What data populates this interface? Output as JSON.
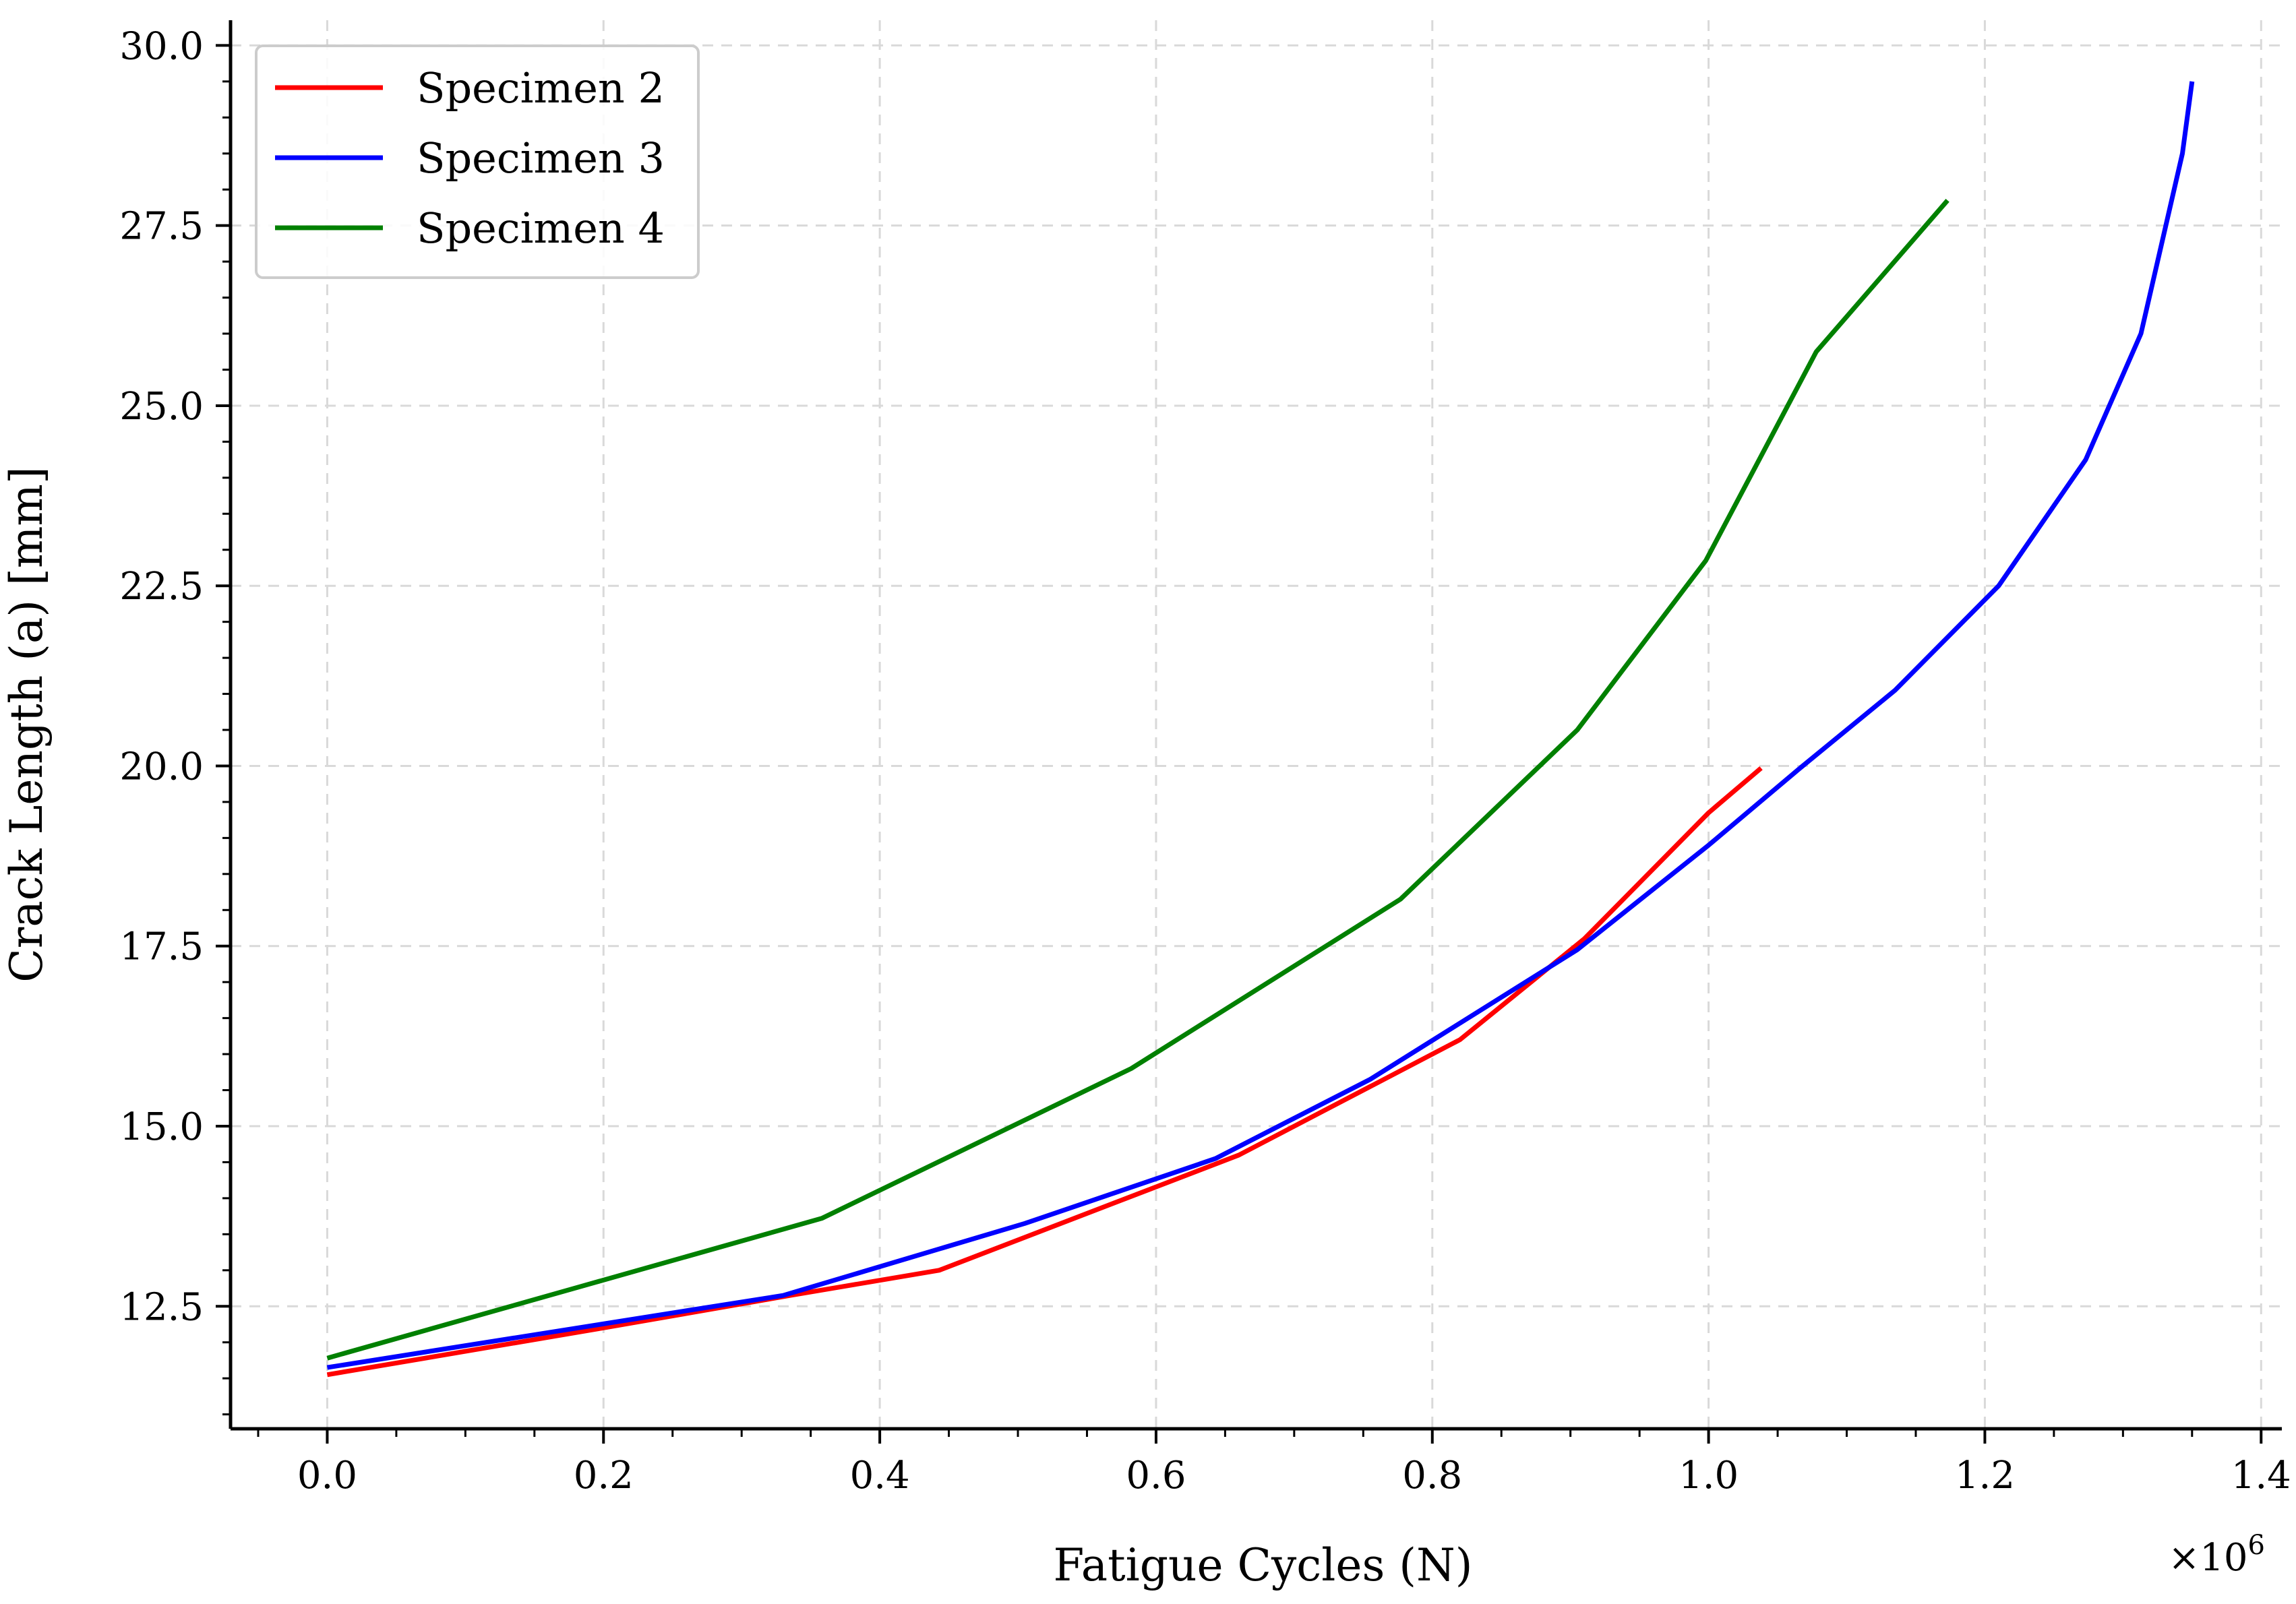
{
  "chart_data": {
    "type": "line",
    "xlabel": "Fatigue Cycles (N)",
    "ylabel": "Crack Length (a) [mm]",
    "x_offset_label": "×10",
    "x_offset_exponent": "6",
    "xlim": [
      -0.07,
      1.415
    ],
    "ylim": [
      10.8,
      30.35
    ],
    "x_ticks": [
      0.0,
      0.2,
      0.4,
      0.6,
      0.8,
      1.0,
      1.2,
      1.4
    ],
    "x_tick_labels": [
      "0.0",
      "0.2",
      "0.4",
      "0.6",
      "0.8",
      "1.0",
      "1.2",
      "1.4"
    ],
    "y_ticks": [
      12.5,
      15.0,
      17.5,
      20.0,
      22.5,
      25.0,
      27.5,
      30.0
    ],
    "y_tick_labels": [
      "12.5",
      "15.0",
      "17.5",
      "20.0",
      "22.5",
      "25.0",
      "27.5",
      "30.0"
    ],
    "grid": true,
    "legend_position": "top-left",
    "series": [
      {
        "name": "Specimen 2",
        "color": "#ff0000",
        "x": [
          0.0,
          0.2,
          0.335,
          0.443,
          0.66,
          0.82,
          0.91,
          1.0,
          1.038
        ],
        "y": [
          11.55,
          12.2,
          12.65,
          13.0,
          14.6,
          16.2,
          17.6,
          19.35,
          19.97
        ]
      },
      {
        "name": "Specimen 3",
        "color": "#0000ff",
        "x": [
          0.0,
          0.33,
          0.505,
          0.643,
          0.755,
          0.905,
          1.0,
          1.065,
          1.135,
          1.21,
          1.273,
          1.313,
          1.343,
          1.35
        ],
        "y": [
          11.65,
          12.65,
          13.65,
          14.55,
          15.65,
          17.45,
          18.9,
          19.95,
          21.05,
          22.5,
          24.25,
          26.0,
          28.5,
          29.5
        ]
      },
      {
        "name": "Specimen 4",
        "color": "#008000",
        "x": [
          0.0,
          0.358,
          0.582,
          0.777,
          0.905,
          0.998,
          1.078,
          1.173
        ],
        "y": [
          11.78,
          13.72,
          15.8,
          18.15,
          20.5,
          22.85,
          25.75,
          27.85
        ]
      }
    ]
  }
}
